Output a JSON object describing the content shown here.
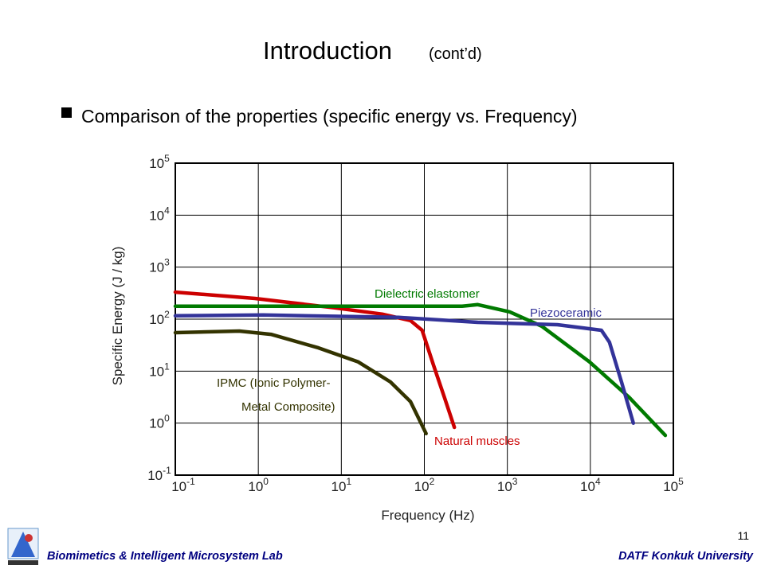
{
  "title": "Introduction",
  "title_suffix": "(cont’d)",
  "bullet": "Comparison of the properties (specific energy vs. Frequency)",
  "footer_left": "Biomimetics & Intelligent Microsystem Lab",
  "footer_right": "DATF Konkuk University",
  "page_number": "11",
  "chart_data": {
    "type": "line",
    "x_label": "Frequency (Hz)",
    "y_label": "Specific Energy (J / kg)",
    "xscale": "log",
    "yscale": "log",
    "grid": true,
    "xlim": [
      0.1,
      100000
    ],
    "ylim": [
      0.1,
      100000
    ],
    "xticks": [
      {
        "value": 0.1,
        "label": "10",
        "exponent": "-1"
      },
      {
        "value": 1,
        "label": "10",
        "exponent": "0"
      },
      {
        "value": 10,
        "label": "10",
        "exponent": "1"
      },
      {
        "value": 100,
        "label": "10",
        "exponent": "2"
      },
      {
        "value": 1000,
        "label": "10",
        "exponent": "3"
      },
      {
        "value": 10000,
        "label": "10",
        "exponent": "4"
      },
      {
        "value": 100000,
        "label": "10",
        "exponent": "5"
      }
    ],
    "yticks": [
      {
        "value": 0.1,
        "label": "10",
        "exponent": "-1"
      },
      {
        "value": 1,
        "label": "10",
        "exponent": "0"
      },
      {
        "value": 10,
        "label": "10",
        "exponent": "1"
      },
      {
        "value": 100,
        "label": "10",
        "exponent": "2"
      },
      {
        "value": 1000,
        "label": "10",
        "exponent": "3"
      },
      {
        "value": 10000,
        "label": "10",
        "exponent": "4"
      },
      {
        "value": 100000,
        "label": "10",
        "exponent": "5"
      }
    ],
    "series": [
      {
        "name_lines": [
          "Natural muscles"
        ],
        "color": "#cc0000",
        "x": [
          0.1,
          0.91,
          8.3,
          31,
          68,
          94,
          130,
          175,
          230
        ],
        "y": [
          330,
          250,
          165,
          125,
          94,
          61,
          12.5,
          3.1,
          0.83
        ]
      },
      {
        "name_lines": [
          "Dielectric elastomer"
        ],
        "color": "#007a00",
        "x": [
          0.1,
          285,
          440,
          1070,
          2600,
          9800,
          29500,
          80000
        ],
        "y": [
          177,
          177,
          190,
          138,
          73,
          15,
          3.1,
          0.58
        ]
      },
      {
        "name_lines": [
          "Piezoceramic"
        ],
        "color": "#333399",
        "x": [
          0.1,
          1.14,
          49,
          440,
          4000,
          13600,
          17000,
          23700,
          33000
        ],
        "y": [
          116,
          120,
          108,
          87,
          78,
          61,
          36,
          6.2,
          1.0
        ]
      },
      {
        "name_lines": [
          "IPMC (Ionic Polymer-",
          "Metal Composite)"
        ],
        "color": "#333300",
        "x": [
          0.1,
          0.59,
          1.42,
          5.3,
          16,
          39,
          68,
          105
        ],
        "y": [
          55,
          59,
          51,
          28,
          15,
          6.2,
          2.6,
          0.63
        ]
      }
    ]
  }
}
